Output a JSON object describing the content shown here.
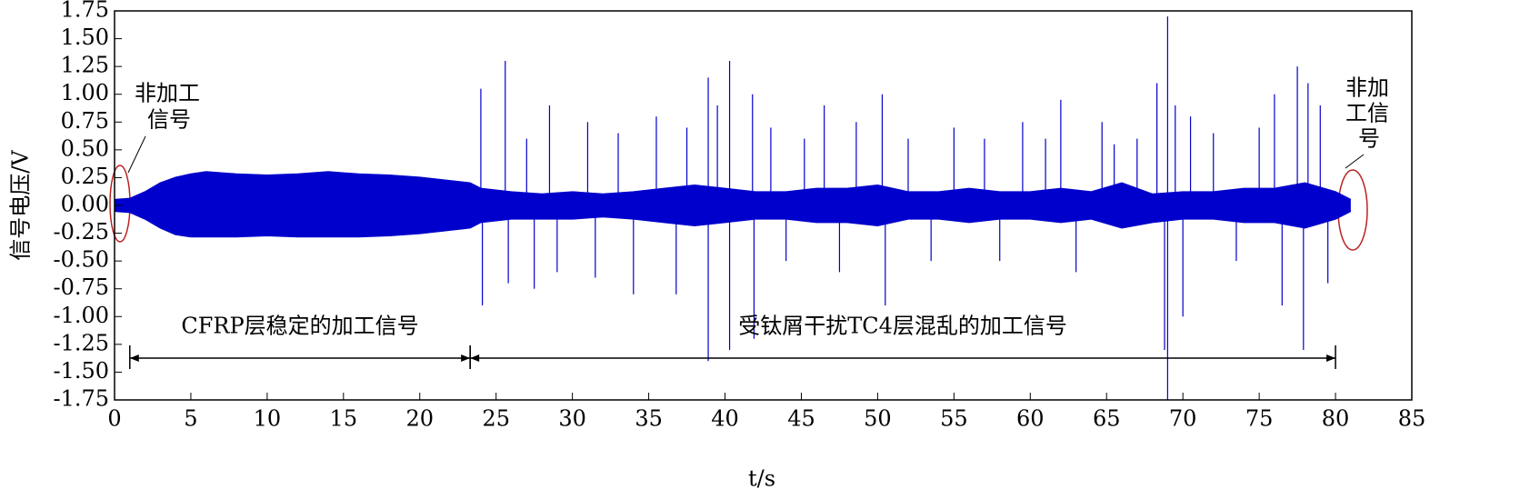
{
  "chart_data": {
    "type": "signal",
    "xlabel": "t/s",
    "ylabel": "信号电压/V",
    "color": "#0000cc",
    "xlim": [
      0,
      85
    ],
    "ylim": [
      -1.75,
      1.75
    ],
    "xticks": [
      0,
      5,
      10,
      15,
      20,
      25,
      30,
      35,
      40,
      45,
      50,
      55,
      60,
      65,
      70,
      75,
      80,
      85
    ],
    "yticks": [
      {
        "value": -1.75,
        "label": "-1.75"
      },
      {
        "value": -1.5,
        "label": "-1.50"
      },
      {
        "value": -1.25,
        "label": "-1.25"
      },
      {
        "value": -1,
        "label": "-1.00"
      },
      {
        "value": -0.75,
        "label": "-0.75"
      },
      {
        "value": -0.5,
        "label": "-0.50"
      },
      {
        "value": -0.25,
        "label": "-0.25"
      },
      {
        "value": 0,
        "label": "0.00"
      },
      {
        "value": 0.25,
        "label": "0.25"
      },
      {
        "value": 0.5,
        "label": "0.50"
      },
      {
        "value": 0.75,
        "label": "0.75"
      },
      {
        "value": 1,
        "label": "1.00"
      },
      {
        "value": 1.25,
        "label": "1.25"
      },
      {
        "value": 1.5,
        "label": "1.50"
      },
      {
        "value": 1.75,
        "label": "1.75"
      }
    ],
    "envelope": {
      "x": [
        0,
        1,
        2,
        3,
        4,
        5,
        6,
        8,
        10,
        12,
        14,
        16,
        18,
        20,
        22,
        23.3,
        24,
        26,
        28,
        30,
        32,
        34,
        36,
        38,
        40,
        42,
        44,
        46,
        48,
        50,
        52,
        54,
        56,
        58,
        60,
        62,
        64,
        66,
        68,
        70,
        72,
        74,
        76,
        78,
        80,
        81
      ],
      "upper": [
        0.05,
        0.06,
        0.12,
        0.2,
        0.25,
        0.28,
        0.3,
        0.28,
        0.27,
        0.28,
        0.3,
        0.28,
        0.27,
        0.25,
        0.22,
        0.2,
        0.15,
        0.12,
        0.1,
        0.12,
        0.1,
        0.12,
        0.15,
        0.18,
        0.15,
        0.12,
        0.12,
        0.15,
        0.15,
        0.18,
        0.12,
        0.12,
        0.15,
        0.12,
        0.12,
        0.15,
        0.12,
        0.2,
        0.1,
        0.12,
        0.12,
        0.15,
        0.15,
        0.2,
        0.12,
        0.05
      ],
      "lower": [
        -0.05,
        -0.06,
        -0.12,
        -0.2,
        -0.26,
        -0.28,
        -0.28,
        -0.28,
        -0.27,
        -0.28,
        -0.28,
        -0.28,
        -0.27,
        -0.25,
        -0.22,
        -0.2,
        -0.15,
        -0.12,
        -0.12,
        -0.12,
        -0.1,
        -0.12,
        -0.15,
        -0.18,
        -0.15,
        -0.12,
        -0.12,
        -0.15,
        -0.15,
        -0.18,
        -0.12,
        -0.12,
        -0.15,
        -0.12,
        -0.12,
        -0.15,
        -0.12,
        -0.2,
        -0.15,
        -0.12,
        -0.12,
        -0.15,
        -0.15,
        -0.2,
        -0.12,
        -0.05
      ]
    },
    "spikes": {
      "x": [
        24.0,
        24.1,
        25.6,
        25.8,
        27,
        27.5,
        28.5,
        29,
        31,
        31.5,
        33,
        34,
        35.5,
        36.8,
        37.5,
        38.9,
        38.9,
        39.5,
        40.3,
        40.3,
        41.8,
        41.9,
        43,
        44,
        45.2,
        46.5,
        47.5,
        48.6,
        50.3,
        50.5,
        52,
        53.5,
        55,
        57,
        58,
        59.5,
        61,
        62,
        63,
        64.7,
        65.5,
        67,
        68.3,
        68.8,
        69,
        69,
        69.5,
        70,
        70.5,
        72,
        73.5,
        75,
        76,
        76.5,
        77.5,
        77.9,
        78.2,
        79,
        79.5
      ],
      "values": [
        1.05,
        -0.9,
        1.3,
        -0.7,
        0.6,
        -0.75,
        0.9,
        -0.6,
        0.75,
        -0.65,
        0.65,
        -0.8,
        0.8,
        -0.8,
        0.7,
        1.15,
        -1.4,
        0.9,
        1.3,
        -1.3,
        1.0,
        -1.2,
        0.7,
        -0.5,
        0.6,
        0.9,
        -0.6,
        0.75,
        1.0,
        -0.9,
        0.6,
        -0.5,
        0.7,
        0.6,
        -0.5,
        0.75,
        0.6,
        0.95,
        -0.6,
        0.75,
        0.55,
        0.6,
        1.1,
        -1.3,
        1.7,
        -1.75,
        0.9,
        -1.0,
        0.8,
        0.65,
        -0.5,
        0.7,
        1.0,
        -0.9,
        1.25,
        -1.3,
        1.1,
        0.9,
        -0.7
      ]
    },
    "spans": [
      {
        "label": "CFRP层稳定的加工信号",
        "x": [
          1,
          23.3
        ]
      },
      {
        "label": "受钛屑干扰TC4层混乱的加工信号",
        "x": [
          23.3,
          80
        ]
      }
    ],
    "annotations": {
      "left": [
        "非加工",
        "信号"
      ],
      "right": [
        "非加",
        "工信",
        "号"
      ]
    }
  }
}
